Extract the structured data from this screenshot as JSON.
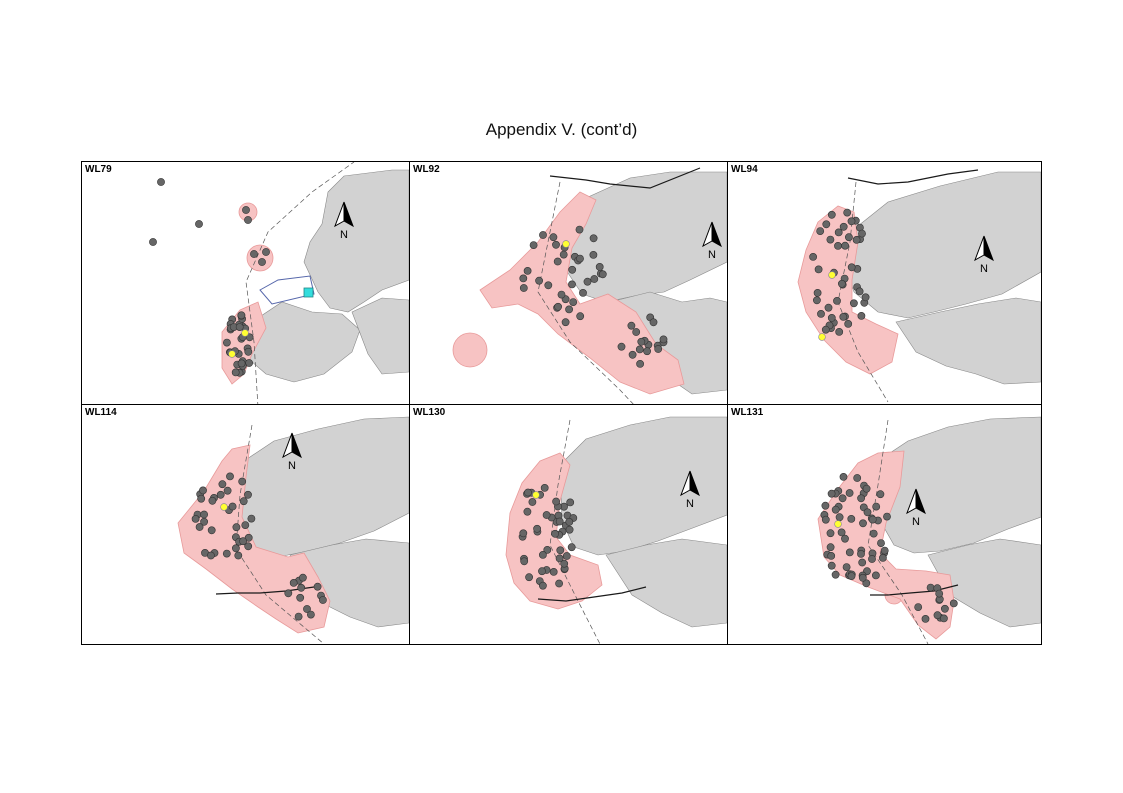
{
  "page": {
    "title": "Appendix V.  (cont’d)"
  },
  "colors": {
    "land": "#d2d2d2",
    "range": "#f7c3c3",
    "range_edge": "#e89a9a",
    "location": "#666666",
    "release": "#ffff33",
    "boundary": "#555555",
    "cyan_marker": "#33dddd"
  },
  "north_arrow_label": "N",
  "panels": [
    {
      "id": "WL79",
      "label": "WL79"
    },
    {
      "id": "WL92",
      "label": "WL92"
    },
    {
      "id": "WL94",
      "label": "WL94"
    },
    {
      "id": "WL114",
      "label": "WL114"
    },
    {
      "id": "WL130",
      "label": "WL130"
    },
    {
      "id": "WL131",
      "label": "WL131"
    }
  ]
}
